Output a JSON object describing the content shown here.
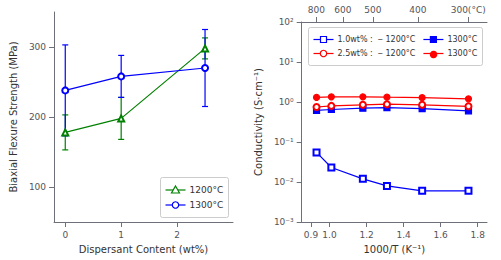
{
  "chart_data": [
    {
      "type": "line",
      "xlabel": "Dispersant Content (wt%)",
      "ylabel": "Biaxial Flexure Strength (MPa)",
      "x": [
        0,
        1,
        2.5
      ],
      "xlim": [
        -0.2,
        3.0
      ],
      "ylim": [
        50,
        350
      ],
      "xticks": [
        0,
        1,
        2
      ],
      "yticks": [
        100,
        200,
        300
      ],
      "grid": false,
      "legend": "lower right",
      "series": [
        {
          "name": "1200°C",
          "color": "green",
          "marker": "open-triangle",
          "line_style": "solid",
          "values": [
            178,
            198,
            298
          ],
          "yerr": [
            25,
            30,
            15
          ]
        },
        {
          "name": "1300°C",
          "color": "blue",
          "marker": "open-circle",
          "line_style": "solid",
          "values": [
            238,
            258,
            270
          ],
          "yerr": [
            65,
            30,
            55
          ]
        }
      ]
    },
    {
      "type": "line",
      "xlabel": "1000/T (K⁻¹)",
      "ylabel": "Conductivity (S·cm⁻¹)",
      "log": "y",
      "x": [
        0.93,
        1.01,
        1.18,
        1.31,
        1.5,
        1.75
      ],
      "xlim": [
        0.85,
        1.85
      ],
      "ylim": [
        0.001,
        100
      ],
      "xticks": [
        0.9,
        {
          "value": 1.0,
          "label": "1.0"
        },
        1.2,
        1.4,
        1.6,
        1.8
      ],
      "x2lim": [
        0.85,
        1.85
      ],
      "x2ticks": [
        {
          "value": 0.9294,
          "label": "800"
        },
        {
          "value": 1.0724,
          "label": "600"
        },
        {
          "value": 1.2335,
          "label": "500"
        },
        {
          "value": 1.4771,
          "label": "400"
        },
        {
          "value": 1.7485,
          "label": "300(°C)"
        }
      ],
      "yticks": [
        {
          "value": 0.001,
          "label": "10⁻³"
        },
        {
          "value": 0.01,
          "label": "10⁻²"
        },
        {
          "value": 0.1,
          "label": "10⁻¹"
        },
        {
          "value": 1,
          "label": "10⁰"
        },
        {
          "value": 10,
          "label": "10¹"
        },
        {
          "value": 100,
          "label": "10²"
        }
      ],
      "grid": false,
      "legend": "upper right",
      "series": [
        {
          "name": "1.0wt% :  ‒ 1200°C",
          "color": "blue",
          "marker": "open-square",
          "line_style": "solid",
          "values": [
            0.055,
            0.023,
            0.012,
            0.008,
            0.006,
            0.006
          ]
        },
        {
          "name": "1300°C",
          "color": "blue",
          "marker": "square",
          "line_style": "solid",
          "values": [
            0.62,
            0.65,
            0.7,
            0.72,
            0.68,
            0.6
          ]
        },
        {
          "name": "2.5wt% :  ‒ 1200°C",
          "color": "red",
          "marker": "open-circle",
          "line_style": "solid",
          "values": [
            0.75,
            0.8,
            0.85,
            0.88,
            0.85,
            0.78
          ]
        },
        {
          "name": "1300°C",
          "color": "red",
          "marker": "circle",
          "line_style": "solid",
          "values": [
            1.3,
            1.35,
            1.35,
            1.32,
            1.28,
            1.2
          ]
        }
      ]
    }
  ]
}
